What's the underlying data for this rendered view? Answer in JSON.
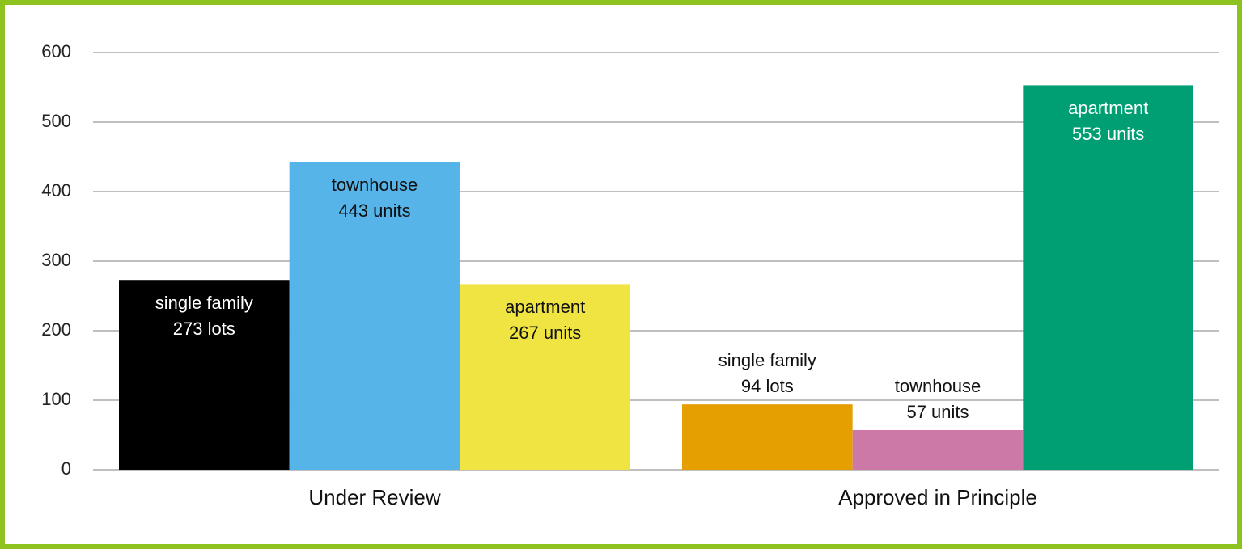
{
  "chart_data": {
    "type": "bar",
    "categories": [
      "Under Review",
      "Approved in Principle"
    ],
    "series": [
      {
        "name": "single family",
        "colors": [
          "#000000",
          "#e69f00"
        ],
        "values": [
          273,
          94
        ],
        "value_labels": [
          "273 lots",
          "94 lots"
        ]
      },
      {
        "name": "townhouse",
        "colors": [
          "#56b4e9",
          "#cc79a7"
        ],
        "values": [
          443,
          57
        ],
        "value_labels": [
          "443 units",
          "57 units"
        ]
      },
      {
        "name": "apartment",
        "colors": [
          "#f0e442",
          "#009e73"
        ],
        "values": [
          267,
          553
        ],
        "value_labels": [
          "267 units",
          "553 units"
        ]
      }
    ],
    "ylim": [
      0,
      600
    ],
    "yticks": [
      0,
      100,
      200,
      300,
      400,
      500,
      600
    ],
    "grid": true
  }
}
